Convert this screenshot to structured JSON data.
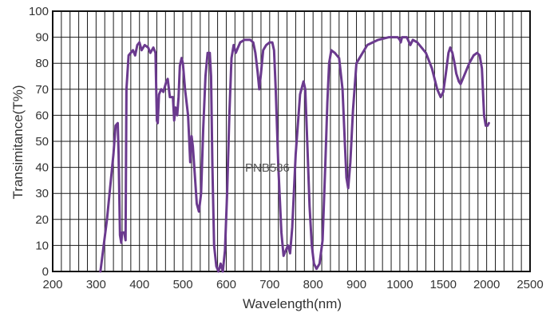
{
  "chart_data": {
    "type": "line",
    "xlabel": "Wavelength(nm)",
    "ylabel": "Transimitance(T%)",
    "annotation": "PNB586",
    "x_ticks": [
      "200",
      "300",
      "400",
      "500",
      "600",
      "700",
      "800",
      "900",
      "1000",
      "1500",
      "2000",
      "2500"
    ],
    "y_ticks": [
      "0",
      "10",
      "20",
      "30",
      "40",
      "50",
      "60",
      "70",
      "80",
      "90",
      "100"
    ],
    "ylim": [
      0,
      100
    ],
    "grid": true,
    "series": [
      {
        "color": "#6b3a8e",
        "points": [
          [
            310,
            0
          ],
          [
            325,
            20
          ],
          [
            340,
            45
          ],
          [
            345,
            56
          ],
          [
            350,
            57
          ],
          [
            352,
            45
          ],
          [
            355,
            14
          ],
          [
            358,
            11
          ],
          [
            360,
            15
          ],
          [
            365,
            15
          ],
          [
            368,
            12
          ],
          [
            370,
            70
          ],
          [
            375,
            83
          ],
          [
            385,
            85
          ],
          [
            390,
            83
          ],
          [
            395,
            87
          ],
          [
            400,
            88
          ],
          [
            405,
            85
          ],
          [
            412,
            87
          ],
          [
            420,
            86
          ],
          [
            425,
            84
          ],
          [
            432,
            86
          ],
          [
            437,
            84
          ],
          [
            440,
            58
          ],
          [
            442,
            57
          ],
          [
            445,
            68
          ],
          [
            450,
            70
          ],
          [
            455,
            69
          ],
          [
            462,
            73
          ],
          [
            465,
            74
          ],
          [
            470,
            67
          ],
          [
            477,
            67
          ],
          [
            480,
            58
          ],
          [
            483,
            63
          ],
          [
            487,
            60
          ],
          [
            490,
            67
          ],
          [
            493,
            79
          ],
          [
            497,
            82
          ],
          [
            500,
            80
          ],
          [
            505,
            70
          ],
          [
            512,
            60
          ],
          [
            517,
            42
          ],
          [
            520,
            52
          ],
          [
            523,
            48
          ],
          [
            528,
            36
          ],
          [
            532,
            26
          ],
          [
            537,
            23
          ],
          [
            542,
            30
          ],
          [
            547,
            55
          ],
          [
            552,
            75
          ],
          [
            557,
            84
          ],
          [
            562,
            84
          ],
          [
            565,
            75
          ],
          [
            568,
            40
          ],
          [
            572,
            10
          ],
          [
            577,
            2
          ],
          [
            582,
            0
          ],
          [
            587,
            3
          ],
          [
            592,
            0
          ],
          [
            597,
            8
          ],
          [
            602,
            30
          ],
          [
            607,
            60
          ],
          [
            612,
            82
          ],
          [
            617,
            87
          ],
          [
            622,
            84
          ],
          [
            627,
            86
          ],
          [
            632,
            88
          ],
          [
            642,
            89
          ],
          [
            655,
            89
          ],
          [
            662,
            88
          ],
          [
            667,
            84
          ],
          [
            672,
            77
          ],
          [
            676,
            70
          ],
          [
            680,
            76
          ],
          [
            685,
            85
          ],
          [
            692,
            87
          ],
          [
            700,
            88
          ],
          [
            706,
            88
          ],
          [
            710,
            85
          ],
          [
            714,
            70
          ],
          [
            720,
            40
          ],
          [
            727,
            15
          ],
          [
            732,
            6
          ],
          [
            737,
            8
          ],
          [
            742,
            10
          ],
          [
            747,
            7
          ],
          [
            752,
            17
          ],
          [
            760,
            45
          ],
          [
            770,
            68
          ],
          [
            778,
            73
          ],
          [
            782,
            70
          ],
          [
            787,
            48
          ],
          [
            792,
            25
          ],
          [
            797,
            10
          ],
          [
            802,
            3
          ],
          [
            808,
            1
          ],
          [
            815,
            3
          ],
          [
            822,
            12
          ],
          [
            828,
            40
          ],
          [
            833,
            65
          ],
          [
            837,
            80
          ],
          [
            842,
            85
          ],
          [
            850,
            84
          ],
          [
            860,
            82
          ],
          [
            868,
            70
          ],
          [
            873,
            50
          ],
          [
            877,
            36
          ],
          [
            881,
            32
          ],
          [
            886,
            42
          ],
          [
            892,
            62
          ],
          [
            900,
            80
          ],
          [
            925,
            87
          ],
          [
            950,
            89
          ],
          [
            975,
            90
          ],
          [
            995,
            90
          ],
          [
            1000,
            89
          ],
          [
            1010,
            88
          ],
          [
            1025,
            90
          ],
          [
            1080,
            90
          ],
          [
            1120,
            87
          ],
          [
            1150,
            89
          ],
          [
            1200,
            88
          ],
          [
            1250,
            86
          ],
          [
            1300,
            84
          ],
          [
            1370,
            78
          ],
          [
            1430,
            70
          ],
          [
            1470,
            67
          ],
          [
            1500,
            69
          ],
          [
            1530,
            76
          ],
          [
            1560,
            84
          ],
          [
            1580,
            86
          ],
          [
            1605,
            84
          ],
          [
            1630,
            80
          ],
          [
            1650,
            76
          ],
          [
            1680,
            73
          ],
          [
            1700,
            72
          ],
          [
            1750,
            76
          ],
          [
            1800,
            80
          ],
          [
            1850,
            83
          ],
          [
            1890,
            84
          ],
          [
            1920,
            83
          ],
          [
            1945,
            78
          ],
          [
            1970,
            60
          ],
          [
            1990,
            56
          ],
          [
            2010,
            56
          ],
          [
            2025,
            57
          ]
        ]
      }
    ]
  }
}
